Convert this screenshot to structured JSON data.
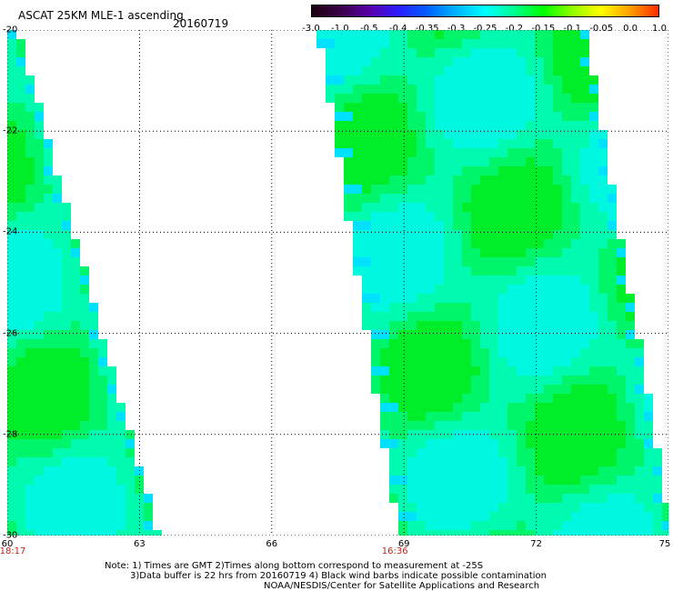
{
  "header": {
    "title": "ASCAT 25KM MLE-1 ascending",
    "date": "20160719"
  },
  "colorbar": {
    "labels": [
      "-3.0",
      "-1.0",
      "-0.5",
      "-0.4",
      "-0.35",
      "-0.3",
      "-0.25",
      "-0.2",
      "-0.15",
      "-0.1",
      "-0.05",
      "0.0",
      "1.0"
    ],
    "colors": [
      "#1a0010",
      "#3a004a",
      "#5a00a8",
      "#2a1cff",
      "#0060ff",
      "#00b4ff",
      "#00ffff",
      "#00ff90",
      "#00ff00",
      "#90ff00",
      "#ffff00",
      "#ffa000",
      "#ff2a00"
    ]
  },
  "map": {
    "lat_labels": [
      "-20",
      "-22",
      "-24",
      "-26",
      "-28",
      "-30"
    ],
    "lon_labels": [
      "60",
      "63",
      "66",
      "69",
      "72",
      "75"
    ],
    "lat_range": [
      -30,
      -20
    ],
    "lon_range": [
      60,
      75
    ],
    "grid": true,
    "swaths": [
      {
        "name": "west",
        "time": "18:17",
        "time_lon": 60
      },
      {
        "name": "east",
        "time": "16:36",
        "time_lon": 69
      }
    ]
  },
  "notes": {
    "line1": "Note: 1) Times are GMT 2)Times along bottom correspond to measurement at -25S",
    "line2": "3)Data buffer is 22 hrs from 20160719 4) Black wind barbs indicate possible contamination",
    "line3": "NOAA/NESDIS/Center for Satellite Applications and Research"
  }
}
